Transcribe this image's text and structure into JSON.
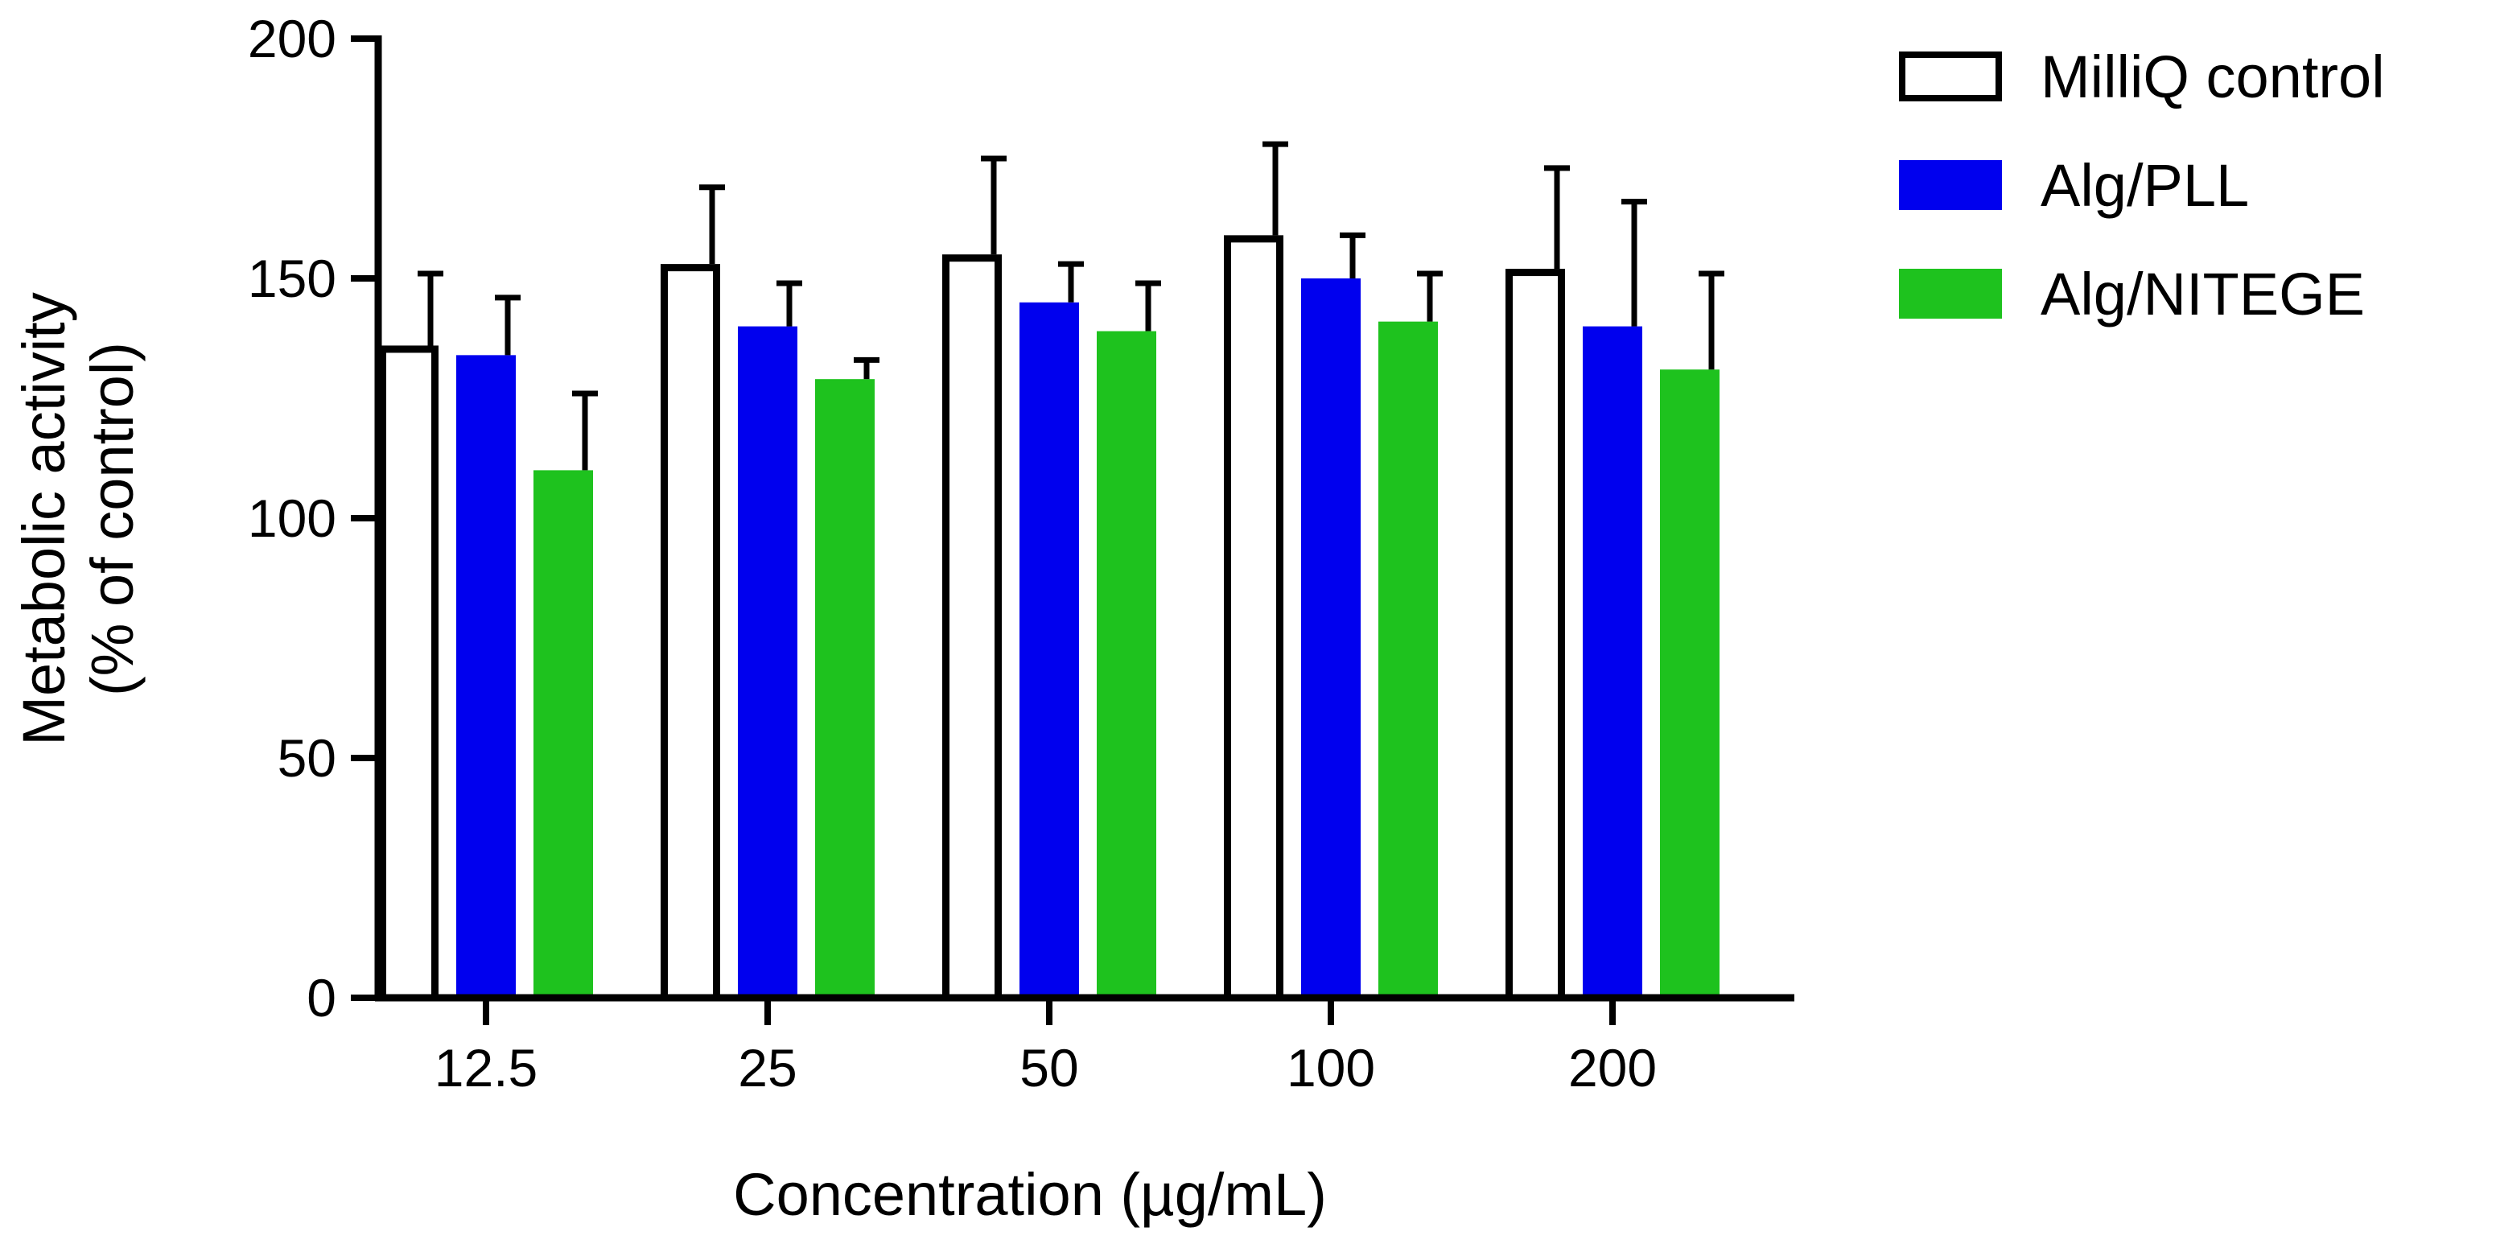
{
  "chart_data": {
    "type": "bar",
    "title": "",
    "xlabel": "Concentration (µg/mL)",
    "ylabel_lines": [
      "Metabolic activity",
      "(% of control)"
    ],
    "ylim": [
      0,
      200
    ],
    "yticks": [
      0,
      50,
      100,
      150,
      200
    ],
    "categories": [
      "12.5",
      "25",
      "50",
      "100",
      "200"
    ],
    "legend_position": "top-right",
    "series": [
      {
        "name": "MilliQ control",
        "color": "#ffffff",
        "stroke": "#000000",
        "values": [
          136,
          153,
          155,
          159,
          152
        ],
        "errors": [
          15,
          16,
          20,
          19,
          21
        ]
      },
      {
        "name": "Alg/PLL",
        "color": "#0000ee",
        "stroke": "#0000ee",
        "values": [
          134,
          140,
          145,
          150,
          140
        ],
        "errors": [
          12,
          9,
          8,
          9,
          26
        ]
      },
      {
        "name": "Alg/NITEGE",
        "color": "#1ec21e",
        "stroke": "#1ec21e",
        "values": [
          110,
          129,
          139,
          141,
          131
        ],
        "errors": [
          16,
          4,
          10,
          10,
          20
        ]
      }
    ]
  }
}
